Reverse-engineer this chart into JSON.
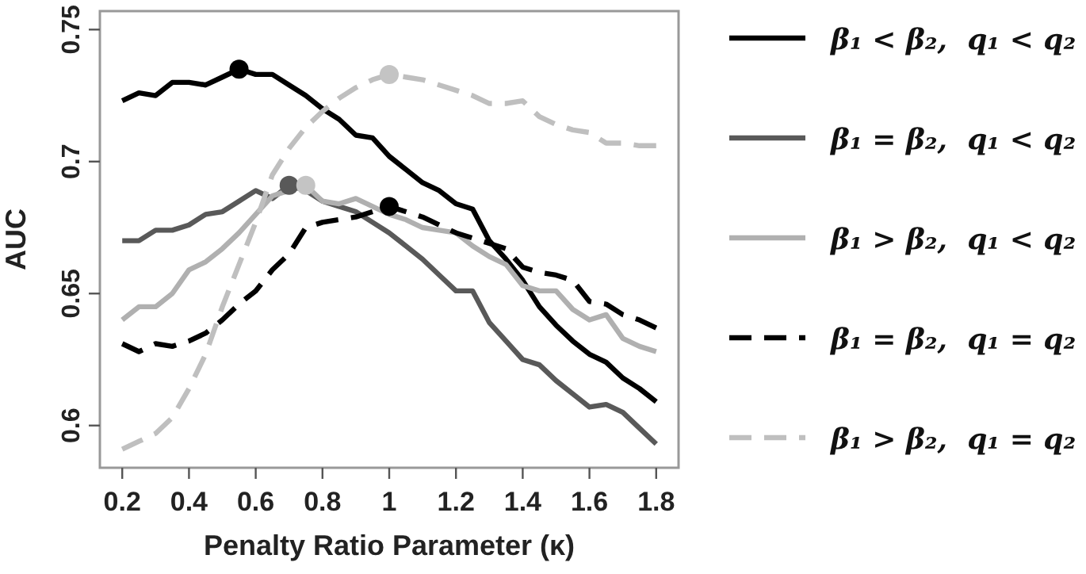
{
  "chart_data": {
    "type": "line",
    "xlabel": "Penalty Ratio Parameter (κ)",
    "ylabel": "AUC",
    "xlim": [
      0.133,
      1.867
    ],
    "ylim": [
      0.584,
      0.757
    ],
    "xticks": [
      0.2,
      0.4,
      0.6,
      0.8,
      1,
      1.2,
      1.4,
      1.6,
      1.8
    ],
    "yticks": [
      0.6,
      0.65,
      0.7,
      0.75
    ],
    "grid": false,
    "legend": "right",
    "series": [
      {
        "name": "β₁ < β₂,  q₁ < q₂",
        "color": "#000000",
        "line_style": "solid",
        "marker": "none",
        "x": [
          0.2,
          0.25,
          0.3,
          0.35,
          0.4,
          0.45,
          0.5,
          0.55,
          0.6,
          0.65,
          0.7,
          0.75,
          0.8,
          0.85,
          0.9,
          0.95,
          1.0,
          1.05,
          1.1,
          1.15,
          1.2,
          1.25,
          1.3,
          1.35,
          1.4,
          1.45,
          1.5,
          1.55,
          1.6,
          1.65,
          1.7,
          1.75,
          1.8
        ],
        "values": [
          0.723,
          0.726,
          0.725,
          0.73,
          0.73,
          0.729,
          0.732,
          0.735,
          0.733,
          0.733,
          0.729,
          0.725,
          0.72,
          0.716,
          0.71,
          0.709,
          0.702,
          0.697,
          0.692,
          0.689,
          0.684,
          0.682,
          0.67,
          0.663,
          0.655,
          0.645,
          0.638,
          0.632,
          0.627,
          0.624,
          0.618,
          0.614,
          0.609
        ]
      },
      {
        "name": "β₁ = β₂,  q₁ < q₂",
        "color": "#595959",
        "line_style": "solid",
        "marker": "none",
        "x": [
          0.2,
          0.25,
          0.3,
          0.35,
          0.4,
          0.45,
          0.5,
          0.55,
          0.6,
          0.65,
          0.7,
          0.75,
          0.8,
          0.85,
          0.9,
          0.95,
          1.0,
          1.05,
          1.1,
          1.15,
          1.2,
          1.25,
          1.3,
          1.35,
          1.4,
          1.45,
          1.5,
          1.55,
          1.6,
          1.65,
          1.7,
          1.75,
          1.8
        ],
        "values": [
          0.67,
          0.67,
          0.674,
          0.674,
          0.676,
          0.68,
          0.681,
          0.685,
          0.689,
          0.686,
          0.691,
          0.689,
          0.685,
          0.683,
          0.681,
          0.677,
          0.673,
          0.668,
          0.663,
          0.657,
          0.651,
          0.651,
          0.639,
          0.632,
          0.625,
          0.623,
          0.617,
          0.612,
          0.607,
          0.608,
          0.605,
          0.599,
          0.593
        ]
      },
      {
        "name": "β₁ > β₂,  q₁ < q₂",
        "color": "#b0b0b0",
        "line_style": "solid",
        "marker": "none",
        "x": [
          0.2,
          0.25,
          0.3,
          0.35,
          0.4,
          0.45,
          0.5,
          0.55,
          0.6,
          0.65,
          0.7,
          0.75,
          0.8,
          0.85,
          0.9,
          0.95,
          1.0,
          1.05,
          1.1,
          1.15,
          1.2,
          1.25,
          1.3,
          1.35,
          1.4,
          1.45,
          1.5,
          1.55,
          1.6,
          1.65,
          1.7,
          1.75,
          1.8
        ],
        "values": [
          0.64,
          0.645,
          0.645,
          0.65,
          0.659,
          0.662,
          0.667,
          0.673,
          0.68,
          0.687,
          0.689,
          0.691,
          0.685,
          0.684,
          0.686,
          0.683,
          0.68,
          0.678,
          0.675,
          0.674,
          0.673,
          0.668,
          0.664,
          0.661,
          0.653,
          0.651,
          0.651,
          0.644,
          0.64,
          0.642,
          0.633,
          0.63,
          0.628
        ]
      },
      {
        "name": "β₁ = β₂,  q₁ = q₂",
        "color": "#000000",
        "line_style": "dashed",
        "marker": "none",
        "x": [
          0.2,
          0.25,
          0.3,
          0.35,
          0.4,
          0.45,
          0.5,
          0.55,
          0.6,
          0.65,
          0.7,
          0.75,
          0.8,
          0.85,
          0.9,
          0.95,
          1.0,
          1.05,
          1.1,
          1.15,
          1.2,
          1.25,
          1.3,
          1.35,
          1.4,
          1.45,
          1.5,
          1.55,
          1.6,
          1.65,
          1.7,
          1.75,
          1.8
        ],
        "values": [
          0.631,
          0.628,
          0.631,
          0.63,
          0.632,
          0.635,
          0.64,
          0.646,
          0.651,
          0.659,
          0.665,
          0.675,
          0.677,
          0.678,
          0.679,
          0.681,
          0.683,
          0.681,
          0.679,
          0.676,
          0.673,
          0.671,
          0.669,
          0.667,
          0.66,
          0.658,
          0.657,
          0.655,
          0.647,
          0.646,
          0.642,
          0.64,
          0.637
        ]
      },
      {
        "name": "β₁ > β₂,  q₁ = q₂",
        "color": "#bfbfbf",
        "line_style": "dashed",
        "marker": "none",
        "x": [
          0.2,
          0.25,
          0.3,
          0.35,
          0.4,
          0.45,
          0.5,
          0.55,
          0.6,
          0.65,
          0.7,
          0.75,
          0.8,
          0.85,
          0.9,
          0.95,
          1.0,
          1.05,
          1.1,
          1.15,
          1.2,
          1.25,
          1.3,
          1.35,
          1.4,
          1.45,
          1.5,
          1.55,
          1.6,
          1.65,
          1.7,
          1.75,
          1.8
        ],
        "values": [
          0.591,
          0.594,
          0.597,
          0.603,
          0.614,
          0.627,
          0.645,
          0.661,
          0.677,
          0.695,
          0.705,
          0.713,
          0.719,
          0.724,
          0.728,
          0.731,
          0.733,
          0.732,
          0.731,
          0.729,
          0.727,
          0.725,
          0.722,
          0.722,
          0.723,
          0.717,
          0.714,
          0.712,
          0.711,
          0.707,
          0.707,
          0.706,
          0.706
        ]
      },
      {
        "type": "scatter",
        "color": "#000000",
        "marker": "circle",
        "x": [
          0.55
        ],
        "values": [
          0.735
        ]
      },
      {
        "type": "scatter",
        "color": "#595959",
        "marker": "circle",
        "x": [
          0.7
        ],
        "values": [
          0.691
        ]
      },
      {
        "type": "scatter",
        "color": "#c4c4c4",
        "marker": "circle",
        "x": [
          0.75
        ],
        "values": [
          0.691
        ]
      },
      {
        "type": "scatter",
        "color": "#000000",
        "marker": "circle",
        "x": [
          1.0
        ],
        "values": [
          0.683
        ]
      },
      {
        "type": "scatter",
        "color": "#c4c4c4",
        "marker": "circle",
        "x": [
          1.0
        ],
        "values": [
          0.733
        ]
      }
    ]
  }
}
